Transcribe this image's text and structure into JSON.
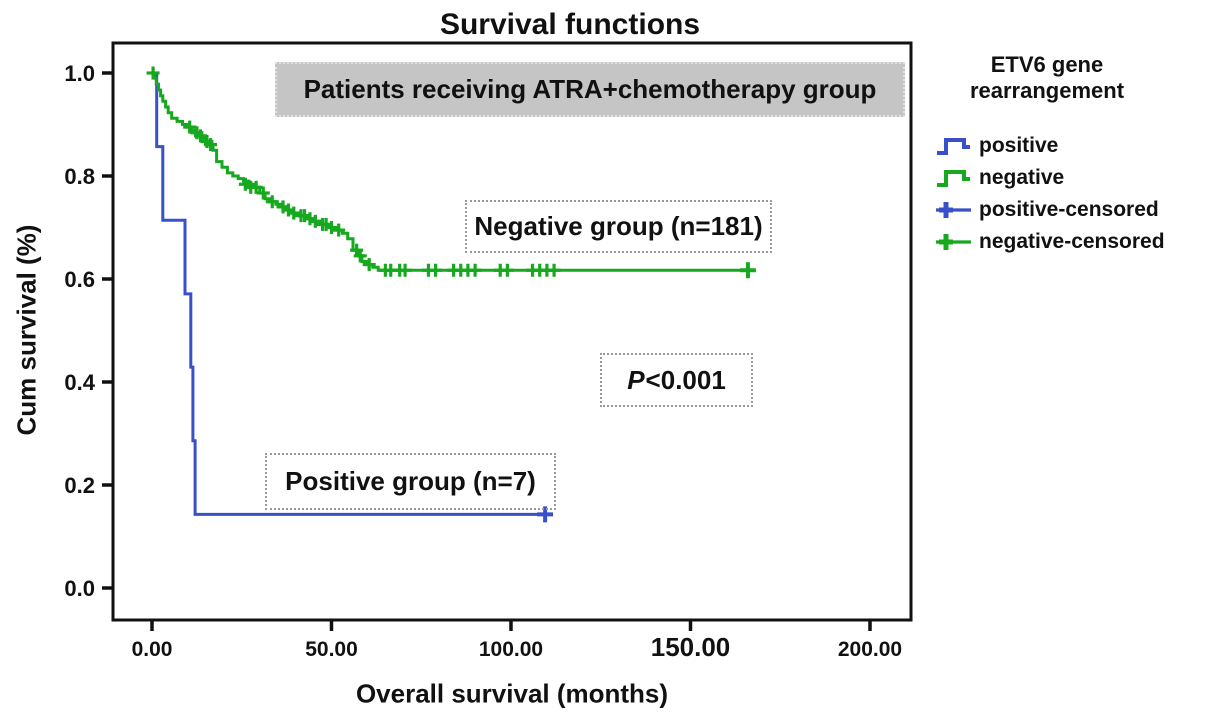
{
  "title": "Survival functions",
  "banner": "Patients receiving ATRA+chemotherapy group",
  "axes": {
    "x_label": "Overall survival (months)",
    "y_label": "Cum survival (%)",
    "x_ticks": [
      "0.00",
      "50.00",
      "100.00",
      "150.00",
      "200.00"
    ],
    "y_ticks": [
      "0.0",
      "0.2",
      "0.4",
      "0.6",
      "0.8",
      "1.0"
    ]
  },
  "annotations": {
    "negative_group": "Negative group (n=181)",
    "positive_group": "Positive group (n=7)",
    "pvalue_prefix": "P",
    "pvalue_rest": "<0.001"
  },
  "legend": {
    "title_line1": "ETV6 gene",
    "title_line2": "rearrangement",
    "items": [
      {
        "label": "positive",
        "type": "step",
        "color": "#3a50c8"
      },
      {
        "label": "negative",
        "type": "step",
        "color": "#16a81e"
      },
      {
        "label": "positive-censored",
        "type": "censor",
        "color": "#3a50c8"
      },
      {
        "label": "negative-censored",
        "type": "censor",
        "color": "#16a81e"
      }
    ]
  },
  "colors": {
    "positive": "#3a50c8",
    "negative": "#16a81e",
    "banner_bg": "#c5c5c5",
    "text": "#111111"
  },
  "chart_data": {
    "type": "line",
    "subtype": "kaplan-meier-step",
    "title": "Survival functions",
    "xlabel": "Overall survival (months)",
    "ylabel": "Cum survival (%)",
    "xlim": [
      0,
      200
    ],
    "ylim": [
      0,
      1.0
    ],
    "x_tick_values": [
      0,
      50,
      100,
      150,
      200
    ],
    "y_tick_values": [
      0,
      0.2,
      0.4,
      0.6,
      0.8,
      1.0
    ],
    "grid": false,
    "legend_position": "right",
    "series": [
      {
        "name": "positive",
        "n": 7,
        "color": "#3a50c8",
        "steps": [
          [
            0,
            1.0
          ],
          [
            1.3,
            0.857
          ],
          [
            3,
            0.714
          ],
          [
            9.2,
            0.571
          ],
          [
            10.8,
            0.429
          ],
          [
            11.4,
            0.286
          ],
          [
            12,
            0.143
          ]
        ],
        "end_x": 109.5,
        "censored": [
          [
            109.5,
            0.143
          ]
        ]
      },
      {
        "name": "negative",
        "n": 181,
        "color": "#16a81e",
        "steps": [
          [
            0,
            1.0
          ],
          [
            0.6,
            0.99
          ],
          [
            1.2,
            0.978
          ],
          [
            1.8,
            0.967
          ],
          [
            2.4,
            0.956
          ],
          [
            3,
            0.945
          ],
          [
            3.8,
            0.934
          ],
          [
            4.5,
            0.923
          ],
          [
            5.5,
            0.912
          ],
          [
            7,
            0.906
          ],
          [
            8.5,
            0.9
          ],
          [
            10,
            0.895
          ],
          [
            11,
            0.889
          ],
          [
            12,
            0.884
          ],
          [
            13,
            0.878
          ],
          [
            14,
            0.873
          ],
          [
            15,
            0.867
          ],
          [
            16,
            0.861
          ],
          [
            17,
            0.85
          ],
          [
            18,
            0.828
          ],
          [
            19.5,
            0.817
          ],
          [
            21,
            0.806
          ],
          [
            22.5,
            0.8
          ],
          [
            24,
            0.795
          ],
          [
            25.5,
            0.79
          ],
          [
            27,
            0.784
          ],
          [
            28.5,
            0.778
          ],
          [
            30,
            0.767
          ],
          [
            31.5,
            0.756
          ],
          [
            33,
            0.75
          ],
          [
            34.5,
            0.745
          ],
          [
            36,
            0.74
          ],
          [
            37.5,
            0.734
          ],
          [
            39,
            0.728
          ],
          [
            41,
            0.723
          ],
          [
            43,
            0.717
          ],
          [
            45,
            0.712
          ],
          [
            47,
            0.706
          ],
          [
            49,
            0.7
          ],
          [
            51,
            0.695
          ],
          [
            53,
            0.689
          ],
          [
            54.5,
            0.678
          ],
          [
            56,
            0.656
          ],
          [
            57.5,
            0.645
          ],
          [
            58.5,
            0.634
          ],
          [
            60,
            0.628
          ],
          [
            61.5,
            0.623
          ],
          [
            63,
            0.617
          ]
        ],
        "end_x": 166.5,
        "censored": [
          [
            0.3,
            1.0
          ],
          [
            10.5,
            0.895
          ],
          [
            12.5,
            0.884
          ],
          [
            13.5,
            0.878
          ],
          [
            15.3,
            0.867
          ],
          [
            16.3,
            0.861
          ],
          [
            26,
            0.784
          ],
          [
            27.5,
            0.778
          ],
          [
            29,
            0.778
          ],
          [
            31,
            0.767
          ],
          [
            33.5,
            0.75
          ],
          [
            36.5,
            0.74
          ],
          [
            38,
            0.734
          ],
          [
            39.5,
            0.728
          ],
          [
            41.5,
            0.723
          ],
          [
            42.5,
            0.723
          ],
          [
            44,
            0.717
          ],
          [
            45.5,
            0.712
          ],
          [
            47.5,
            0.706
          ],
          [
            48.5,
            0.706
          ],
          [
            50,
            0.7
          ],
          [
            52,
            0.695
          ],
          [
            57,
            0.656
          ],
          [
            58,
            0.645
          ],
          [
            60.5,
            0.628
          ],
          [
            65,
            0.617
          ],
          [
            66.5,
            0.617
          ],
          [
            69,
            0.617
          ],
          [
            70.5,
            0.617
          ],
          [
            77,
            0.617
          ],
          [
            79,
            0.617
          ],
          [
            84,
            0.617
          ],
          [
            86,
            0.617
          ],
          [
            88,
            0.617
          ],
          [
            90,
            0.617
          ],
          [
            97,
            0.617
          ],
          [
            99,
            0.617
          ],
          [
            106,
            0.617
          ],
          [
            108,
            0.617
          ],
          [
            110,
            0.617
          ],
          [
            112,
            0.617
          ],
          [
            166,
            0.617
          ]
        ]
      }
    ]
  }
}
